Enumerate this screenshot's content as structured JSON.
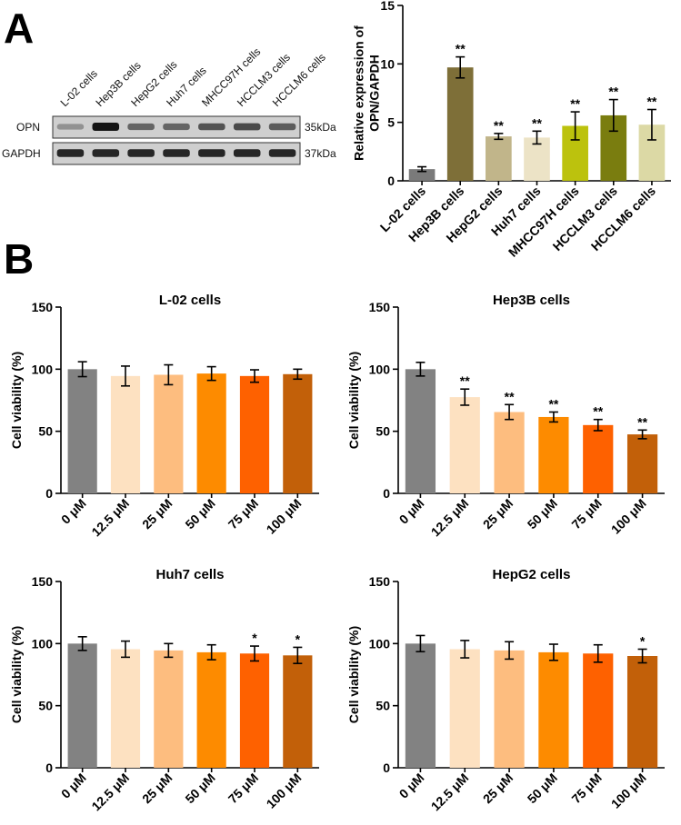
{
  "panels": {
    "a": "A",
    "b": "B"
  },
  "blot": {
    "lanes": [
      "L-02 cells",
      "Hep3B cells",
      "HepG2 cells",
      "Huh7 cells",
      "MHCC97H cells",
      "HCCLM3 cells",
      "HCCLM6 cells"
    ],
    "rows": [
      {
        "label": "OPN",
        "kda": "35kDa",
        "intensity": [
          0.3,
          1.0,
          0.55,
          0.55,
          0.65,
          0.7,
          0.6
        ]
      },
      {
        "label": "GAPDH",
        "kda": "37kDa",
        "intensity": [
          0.9,
          0.9,
          0.9,
          0.9,
          0.9,
          0.9,
          0.9
        ]
      }
    ]
  },
  "chart_data": [
    {
      "id": "a",
      "type": "bar",
      "title": "",
      "ylabel": "Relative expression of OPN/GAPDH",
      "xlabel": "",
      "ylim": [
        0,
        15
      ],
      "yticks": [
        0,
        5,
        10,
        15
      ],
      "categories": [
        "L-02 cells",
        "Hep3B cells",
        "HepG2 cells",
        "Huh7 cells",
        "MHCC97H cells",
        "HCCLM3 cells",
        "HCCLM6 cells"
      ],
      "values": [
        1.0,
        9.7,
        3.8,
        3.7,
        4.7,
        5.6,
        4.8
      ],
      "errors": [
        0.2,
        0.9,
        0.25,
        0.55,
        1.2,
        1.35,
        1.3
      ],
      "significance": [
        "",
        "**",
        "**",
        "**",
        "**",
        "**",
        "**"
      ],
      "colors": [
        "#7a7a7a",
        "#7e6f38",
        "#c1b58a",
        "#ece3c6",
        "#bcc20d",
        "#7a7d0f",
        "#dcd9a5"
      ]
    },
    {
      "id": "b1",
      "type": "bar",
      "title": "L-02 cells",
      "ylabel": "Cell viability (%)",
      "xlabel": "",
      "ylim": [
        0,
        150
      ],
      "yticks": [
        0,
        50,
        100,
        150
      ],
      "categories": [
        "0 μM",
        "12.5 μM",
        "25 μM",
        "50 μM",
        "75 μM",
        "100 μM"
      ],
      "values": [
        100,
        94.5,
        95.5,
        96.5,
        94.5,
        96
      ],
      "errors": [
        6,
        8,
        8,
        5.5,
        5,
        4
      ],
      "significance": [
        "",
        "",
        "",
        "",
        "",
        ""
      ],
      "colors": [
        "#828282",
        "#fde1c1",
        "#fdbd7f",
        "#fd8b00",
        "#fe6100",
        "#c26009"
      ]
    },
    {
      "id": "b2",
      "type": "bar",
      "title": "Hep3B cells",
      "ylabel": "Cell viability (%)",
      "xlabel": "",
      "ylim": [
        0,
        150
      ],
      "yticks": [
        0,
        50,
        100,
        150
      ],
      "categories": [
        "0 μM",
        "12.5 μM",
        "25 μM",
        "50 μM",
        "75 μM",
        "100 μM"
      ],
      "values": [
        100,
        77.5,
        65.5,
        61.5,
        55,
        47.5
      ],
      "errors": [
        5.5,
        6.5,
        6,
        4,
        4.5,
        3.5
      ],
      "significance": [
        "",
        "**",
        "**",
        "**",
        "**",
        "**"
      ],
      "colors": [
        "#828282",
        "#fde1c1",
        "#fdbd7f",
        "#fd8b00",
        "#fe6100",
        "#c26009"
      ]
    },
    {
      "id": "b3",
      "type": "bar",
      "title": "Huh7 cells",
      "ylabel": "Cell viability (%)",
      "xlabel": "",
      "ylim": [
        0,
        150
      ],
      "yticks": [
        0,
        50,
        100,
        150
      ],
      "categories": [
        "0 μM",
        "12.5 μM",
        "25 μM",
        "50 μM",
        "75 μM",
        "100 μM"
      ],
      "values": [
        100,
        95.5,
        94.5,
        93,
        92,
        90.5
      ],
      "errors": [
        5.5,
        6.5,
        5.5,
        6,
        6,
        6.5
      ],
      "significance": [
        "",
        "",
        "",
        "",
        "*",
        "*"
      ],
      "colors": [
        "#828282",
        "#fde1c1",
        "#fdbd7f",
        "#fd8b00",
        "#fe6100",
        "#c26009"
      ]
    },
    {
      "id": "b4",
      "type": "bar",
      "title": "HepG2 cells",
      "ylabel": "Cell viability (%)",
      "xlabel": "",
      "ylim": [
        0,
        150
      ],
      "yticks": [
        0,
        50,
        100,
        150
      ],
      "categories": [
        "0 μM",
        "12.5 μM",
        "25 μM",
        "50 μM",
        "75 μM",
        "100 μM"
      ],
      "values": [
        100,
        95.5,
        94.5,
        93,
        92,
        90
      ],
      "errors": [
        6.5,
        7,
        7,
        6.5,
        7,
        5.5
      ],
      "significance": [
        "",
        "",
        "",
        "",
        "",
        "*"
      ],
      "colors": [
        "#828282",
        "#fde1c1",
        "#fdbd7f",
        "#fd8b00",
        "#fe6100",
        "#c26009"
      ]
    }
  ]
}
